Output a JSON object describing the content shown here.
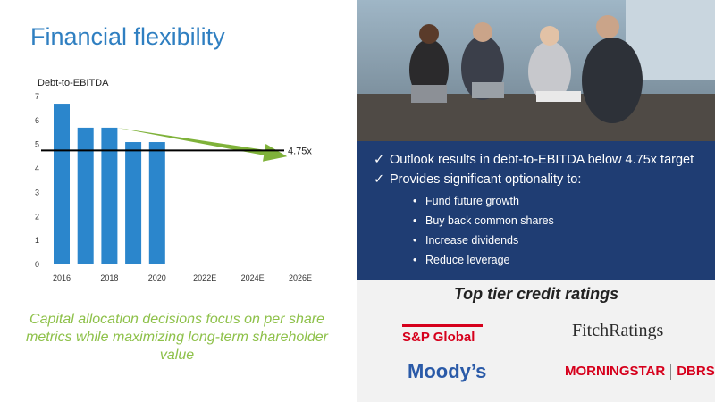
{
  "slide": {
    "title": "Financial flexibility",
    "caption": "Capital allocation decisions focus on per share metrics while maximizing long-term shareholder value",
    "bullets": [
      {
        "text": "Outlook results in debt-to-EBITDA below 4.75x target",
        "items": []
      },
      {
        "text": "Provides significant optionality to:",
        "items": [
          "Fund future growth",
          "Buy back common shares",
          "Increase dividends",
          "Reduce leverage"
        ]
      }
    ],
    "ratings": {
      "title": "Top tier credit ratings",
      "logos": [
        "S&P Global",
        "FitchRatings",
        "Moody’s",
        "MORNINGSTAR",
        "DBRS"
      ]
    },
    "photo_alt": "business-meeting-photo"
  },
  "colors": {
    "title": "#2f7fc1",
    "bar": "#2b86cc",
    "arrow": "#7fb23a",
    "caption": "#8ec14a",
    "panel": "#1f3d73"
  },
  "chart_data": {
    "type": "bar",
    "title": "",
    "ylabel": "Debt-to-EBITDA",
    "categories": [
      "2016",
      "2017",
      "2018",
      "2019",
      "2020"
    ],
    "values": [
      6.7,
      5.7,
      5.7,
      5.1,
      5.1
    ],
    "x_ticks": [
      "2016",
      "2018",
      "2020",
      "2022E",
      "2024E",
      "2026E"
    ],
    "y_ticks": [
      0,
      1,
      2,
      3,
      4,
      5,
      6,
      7
    ],
    "ylim": [
      0,
      7
    ],
    "target_line": {
      "value": 4.75,
      "label": "4.75x"
    },
    "trend_arrow": {
      "from": "2018",
      "to": "2025E",
      "direction": "down"
    },
    "grid": false
  }
}
